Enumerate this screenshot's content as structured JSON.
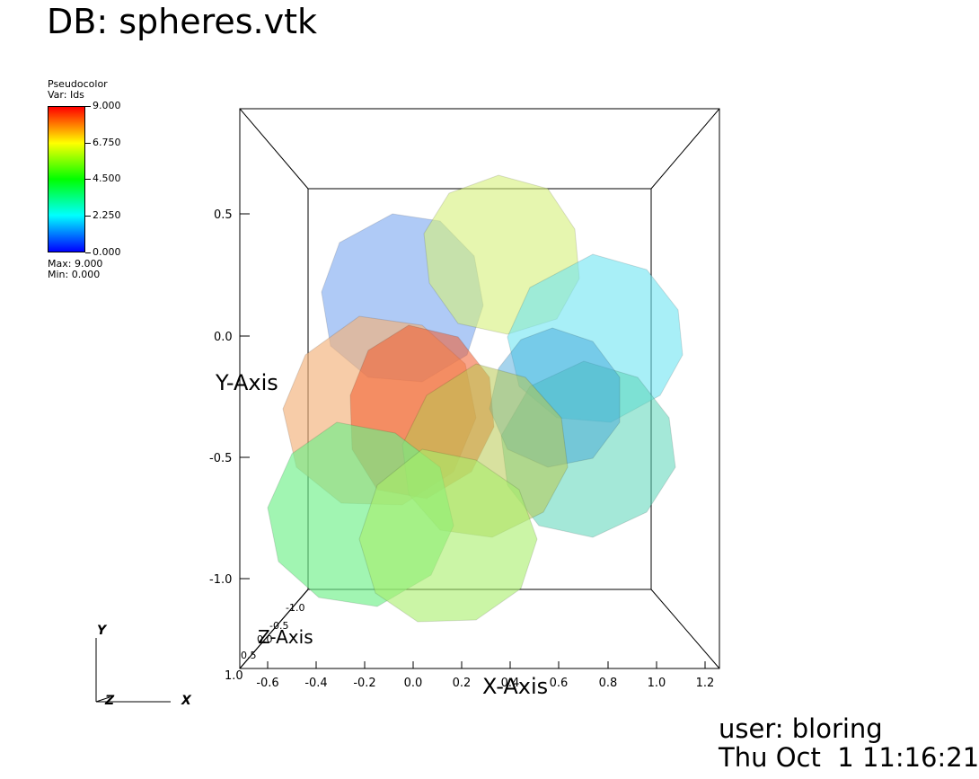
{
  "title": "DB: spheres.vtk",
  "legend": {
    "plot_type": "Pseudocolor",
    "var_label": "Var: Ids",
    "ticks": [
      "9.000",
      "6.750",
      "4.500",
      "2.250",
      "0.000"
    ],
    "max_label": "Max:  9.000",
    "min_label": "Min:  0.000"
  },
  "axes": {
    "x_title": "X-Axis",
    "y_title": "Y-Axis",
    "z_title": "Z-Axis",
    "x_ticks": [
      "-0.6",
      "-0.4",
      "-0.2",
      "0.0",
      "0.2",
      "0.4",
      "0.6",
      "0.8",
      "1.0",
      "1.2"
    ],
    "y_ticks": [
      "0.5",
      "0.0",
      "-0.5",
      "-1.0"
    ],
    "z_ticks": [
      "-1.0",
      "-0.5",
      "0.0",
      "0.5",
      "1.0"
    ]
  },
  "triad": {
    "x": "X",
    "y": "Y",
    "z": "Z"
  },
  "user": {
    "name_label": "user: bloring",
    "date_label": "Thu Oct  1 11:16:21"
  },
  "colors": {
    "sphere_blue": "#7aa6f0",
    "sphere_yellow": "#d6f07a",
    "sphere_cyan": "#6ee4f2",
    "sphere_orange": "#f2b07a",
    "sphere_red": "#f25a2a",
    "sphere_green": "#6ef088",
    "sphere_teal": "#5ad6b8",
    "sphere_lime": "#a8ee6a"
  }
}
